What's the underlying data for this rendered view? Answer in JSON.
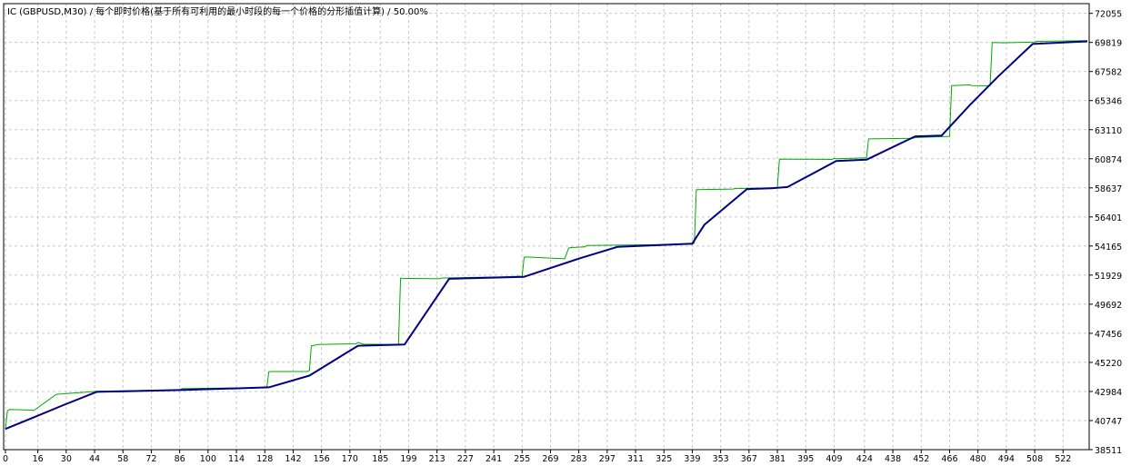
{
  "header": {
    "title": "IC (GBPUSD,M30) / 每个即时价格(基于所有可利用的最小时段的每一个价格的分形插值计算) / 50.00%"
  },
  "colors": {
    "background": "#ffffff",
    "grid": "#c8c8c8",
    "frame": "#000000",
    "series_tick": "#00aa00",
    "series_model": "#000080"
  },
  "chart_data": {
    "type": "line",
    "title": "IC (GBPUSD,M30) / 每个即时价格(基于所有可利用的最小时段的每一个价格的分形插值计算) / 50.00%",
    "xlabel": "",
    "ylabel": "",
    "grid": true,
    "xlim": [
      0,
      534
    ],
    "ylim": [
      38511,
      72800
    ],
    "x_ticks": [
      "0",
      "16",
      "30",
      "44",
      "58",
      "72",
      "86",
      "100",
      "114",
      "128",
      "142",
      "156",
      "170",
      "185",
      "199",
      "213",
      "227",
      "241",
      "255",
      "269",
      "283",
      "297",
      "311",
      "325",
      "339",
      "353",
      "367",
      "381",
      "395",
      "409",
      "424",
      "438",
      "452",
      "466",
      "480",
      "494",
      "508",
      "522"
    ],
    "y_ticks": [
      "72055",
      "69819",
      "67582",
      "65346",
      "63110",
      "60874",
      "58637",
      "56401",
      "54165",
      "51929",
      "49692",
      "47456",
      "45220",
      "42984",
      "40747",
      "38511"
    ],
    "series": [
      {
        "color": "#00aa00",
        "x": [
          0,
          1,
          2,
          13,
          14,
          25,
          26,
          28,
          29,
          30,
          44,
          45,
          65,
          86,
          87,
          88,
          128,
          129,
          130,
          131,
          149,
          150,
          151,
          153,
          154,
          173,
          174,
          176,
          177,
          194,
          195,
          196,
          214,
          215,
          246,
          255,
          256,
          257,
          275,
          276,
          278,
          279,
          286,
          287,
          339,
          340,
          341,
          359,
          360,
          381,
          382,
          383,
          408,
          409,
          410,
          425,
          426,
          448,
          449,
          466,
          467,
          476,
          477,
          486,
          487,
          488,
          491,
          492,
          508,
          509,
          534
        ],
        "y": [
          40100,
          41500,
          41600,
          41550,
          41520,
          42750,
          42780,
          42800,
          42810,
          42820,
          42980,
          43000,
          43050,
          43100,
          43200,
          43210,
          43280,
          43300,
          44500,
          44520,
          44520,
          44600,
          46500,
          46550,
          46600,
          46650,
          46750,
          46650,
          46620,
          46600,
          51700,
          51680,
          51650,
          51700,
          51800,
          51850,
          53300,
          53320,
          53200,
          53180,
          54000,
          54050,
          54100,
          54200,
          54300,
          54400,
          58500,
          58550,
          58580,
          58650,
          60800,
          60850,
          60820,
          60900,
          60880,
          60950,
          62400,
          62450,
          62500,
          62600,
          66500,
          66550,
          66500,
          66480,
          69800,
          69820,
          69800,
          69790,
          69850,
          69900,
          69950
        ]
      },
      {
        "color": "#000080",
        "x": [
          0,
          14,
          28,
          45,
          88,
          130,
          150,
          174,
          197,
          219,
          256,
          283,
          302,
          339,
          345,
          366,
          378,
          386,
          410,
          425,
          449,
          462,
          476,
          490,
          507,
          520,
          534
        ],
        "y": [
          40100,
          41000,
          41900,
          42950,
          43100,
          43300,
          44200,
          46500,
          46600,
          51650,
          51800,
          53200,
          54100,
          54350,
          55800,
          58550,
          58600,
          58700,
          60700,
          60800,
          62600,
          62650,
          65000,
          67200,
          69700,
          69800,
          69900
        ]
      }
    ]
  }
}
